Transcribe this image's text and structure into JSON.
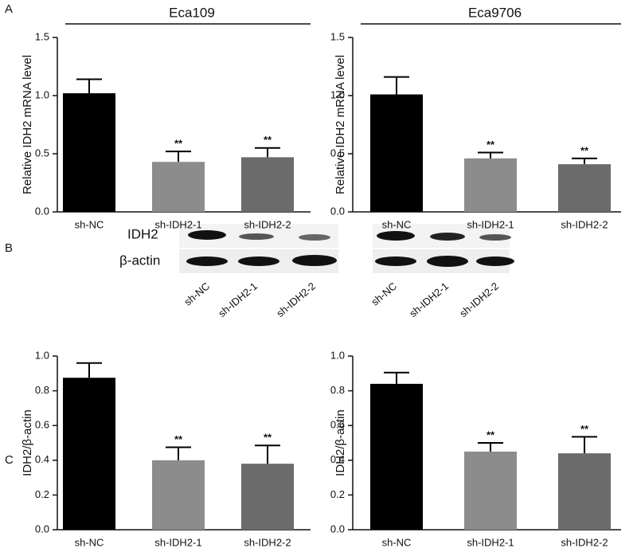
{
  "panel_labels": [
    "A",
    "B",
    "C"
  ],
  "blot": {
    "rows": [
      "IDH2",
      "β-actin"
    ],
    "lanes": [
      [
        "sh-NC",
        "sh-IDH2-1",
        "sh-IDH2-2"
      ],
      [
        "sh-NC",
        "sh-IDH2-1",
        "sh-IDH2-2"
      ]
    ]
  },
  "chart_data": [
    {
      "type": "bar",
      "title": "Eca109",
      "y_label": "Relative IDH2 mRNA level",
      "categories": [
        "sh-NC",
        "sh-IDH2-1",
        "sh-IDH2-2"
      ],
      "values": [
        1.02,
        0.43,
        0.47
      ],
      "errors": [
        0.12,
        0.09,
        0.08
      ],
      "significance": [
        null,
        "**",
        "**"
      ],
      "colors": [
        "#000000",
        "#8c8c8c",
        "#6b6b6b"
      ],
      "ylim": [
        0,
        1.5
      ],
      "yticks": [
        {
          "value": 0,
          "label": "0.0"
        },
        {
          "value": 0.5,
          "label": "0.5"
        },
        {
          "value": 1,
          "label": "1.0"
        },
        {
          "value": 1.5,
          "label": "1.5"
        }
      ]
    },
    {
      "type": "bar",
      "title": "Eca9706",
      "y_label": "Relative IDH2 mRNA level",
      "categories": [
        "sh-NC",
        "sh-IDH2-1",
        "sh-IDH2-2"
      ],
      "values": [
        1.01,
        0.46,
        0.41
      ],
      "errors": [
        0.15,
        0.05,
        0.05
      ],
      "significance": [
        null,
        "**",
        "**"
      ],
      "colors": [
        "#000000",
        "#8c8c8c",
        "#6b6b6b"
      ],
      "ylim": [
        0,
        1.5
      ],
      "yticks": [
        {
          "value": 0,
          "label": "0.0"
        },
        {
          "value": 0.5,
          "label": "0.5"
        },
        {
          "value": 1,
          "label": "1.0"
        },
        {
          "value": 1.5,
          "label": "1.5"
        }
      ]
    },
    {
      "type": "bar",
      "y_label": "IDH2/β-actin",
      "categories": [
        "sh-NC",
        "sh-IDH2-1",
        "sh-IDH2-2"
      ],
      "values": [
        0.875,
        0.4,
        0.38
      ],
      "errors": [
        0.085,
        0.075,
        0.105
      ],
      "significance": [
        null,
        "**",
        "**"
      ],
      "colors": [
        "#000000",
        "#8c8c8c",
        "#6b6b6b"
      ],
      "ylim": [
        0,
        1
      ],
      "yticks": [
        {
          "value": 0,
          "label": "0.0"
        },
        {
          "value": 0.2,
          "label": "0.2"
        },
        {
          "value": 0.4,
          "label": "0.4"
        },
        {
          "value": 0.6,
          "label": "0.6"
        },
        {
          "value": 0.8,
          "label": "0.8"
        },
        {
          "value": 1,
          "label": "1.0"
        }
      ]
    },
    {
      "type": "bar",
      "y_label": "IDH2/β-actin",
      "categories": [
        "sh-NC",
        "sh-IDH2-1",
        "sh-IDH2-2"
      ],
      "values": [
        0.84,
        0.45,
        0.44
      ],
      "errors": [
        0.065,
        0.05,
        0.095
      ],
      "significance": [
        null,
        "**",
        "**"
      ],
      "colors": [
        "#000000",
        "#8c8c8c",
        "#6b6b6b"
      ],
      "ylim": [
        0,
        1
      ],
      "yticks": [
        {
          "value": 0,
          "label": "0.0"
        },
        {
          "value": 0.2,
          "label": "0.2"
        },
        {
          "value": 0.4,
          "label": "0.4"
        },
        {
          "value": 0.6,
          "label": "0.6"
        },
        {
          "value": 0.8,
          "label": "0.8"
        },
        {
          "value": 1,
          "label": "1.0"
        }
      ]
    }
  ]
}
